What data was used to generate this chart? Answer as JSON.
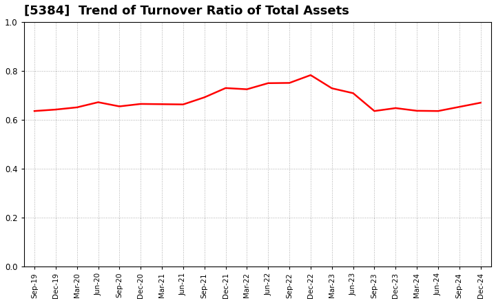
{
  "title": "[5384]  Trend of Turnover Ratio of Total Assets",
  "line_color": "#FF0000",
  "background_color": "#FFFFFF",
  "grid_color": "#AAAAAA",
  "ylim": [
    0.0,
    1.0
  ],
  "yticks": [
    0.0,
    0.2,
    0.4,
    0.6,
    0.8,
    1.0
  ],
  "labels": [
    "Sep-19",
    "Dec-19",
    "Mar-20",
    "Jun-20",
    "Sep-20",
    "Dec-20",
    "Mar-21",
    "Jun-21",
    "Sep-21",
    "Dec-21",
    "Mar-22",
    "Jun-22",
    "Sep-22",
    "Dec-22",
    "Mar-23",
    "Jun-23",
    "Sep-23",
    "Dec-23",
    "Mar-24",
    "Jun-24",
    "Sep-24",
    "Dec-24"
  ],
  "values": [
    0.636,
    0.642,
    0.651,
    0.672,
    0.655,
    0.665,
    0.664,
    0.663,
    0.692,
    0.73,
    0.725,
    0.75,
    0.751,
    0.783,
    0.729,
    0.709,
    0.636,
    0.648,
    0.637,
    0.636,
    0.653,
    0.67
  ],
  "line_width": 1.8,
  "title_fontsize": 13,
  "tick_fontsize": 8.5,
  "xtick_fontsize": 7.5
}
